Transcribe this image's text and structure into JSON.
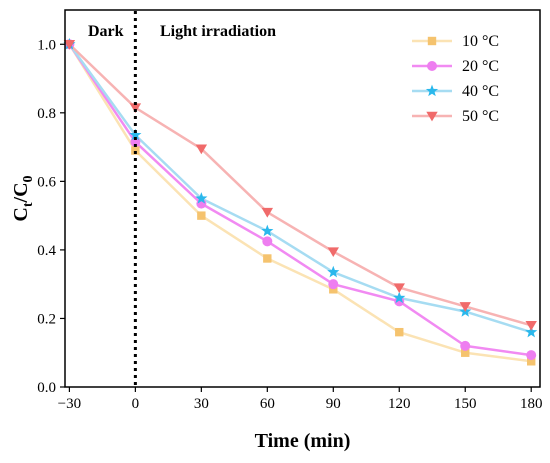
{
  "chart_data": {
    "type": "line",
    "xlabel": "Time (min)",
    "ylabel": {
      "main": "C",
      "sub1": "t",
      "mid": "/C",
      "sub2": "0"
    },
    "x": [
      -30,
      0,
      30,
      60,
      90,
      120,
      150,
      180
    ],
    "x_tick_labels": [
      "−30",
      "0",
      "30",
      "60",
      "90",
      "120",
      "150",
      "180"
    ],
    "y_ticks": [
      0.0,
      0.2,
      0.4,
      0.6,
      0.8,
      1.0
    ],
    "y_tick_labels": [
      "0.0",
      "0.2",
      "0.4",
      "0.6",
      "0.8",
      "1.0"
    ],
    "xlim": [
      -32,
      184
    ],
    "ylim": [
      0.0,
      1.1
    ],
    "grid": false,
    "legend_position": "top-right",
    "annotations": {
      "dark_label": "Dark",
      "light_label": "Light irradiation",
      "divider_x": 0
    },
    "series": [
      {
        "name": "10 °C",
        "marker": "square",
        "color": "#f5c36e",
        "line_color": "#fbe3b4",
        "values": [
          1.0,
          0.69,
          0.5,
          0.375,
          0.285,
          0.16,
          0.1,
          0.075
        ]
      },
      {
        "name": "20 °C",
        "marker": "circle",
        "color": "#ee7ef0",
        "line_color": "#f18af2",
        "values": [
          1.0,
          0.715,
          0.535,
          0.425,
          0.3,
          0.25,
          0.12,
          0.093
        ]
      },
      {
        "name": "40 °C",
        "marker": "star",
        "color": "#2ab8ec",
        "line_color": "#a6dcf2",
        "values": [
          1.0,
          0.735,
          0.55,
          0.455,
          0.335,
          0.26,
          0.22,
          0.16
        ]
      },
      {
        "name": "50 °C",
        "marker": "triangle-down",
        "color": "#f06a6a",
        "line_color": "#f7b3b3",
        "values": [
          1.0,
          0.815,
          0.695,
          0.51,
          0.395,
          0.29,
          0.235,
          0.18
        ]
      }
    ]
  }
}
